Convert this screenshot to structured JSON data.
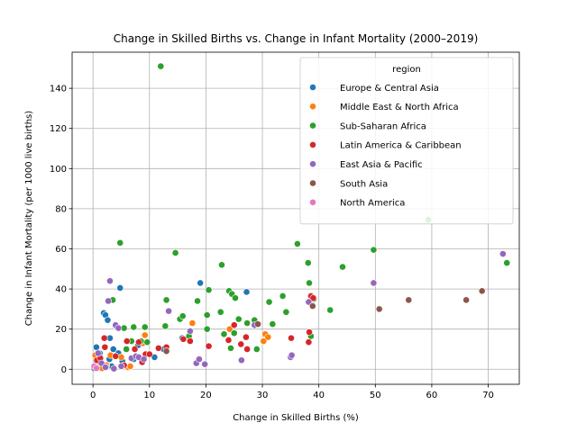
{
  "chart_data": {
    "type": "scatter",
    "title": "Change in Skilled Births vs. Change in Infant Mortality (2000–2019)",
    "xlabel": "Change in Skilled Births (%)",
    "ylabel": "Change in Infant Mortality (per 1000 live births)",
    "xlim": [
      -3.7,
      75.5
    ],
    "ylim": [
      -7.5,
      158
    ],
    "xticks": [
      0,
      10,
      20,
      30,
      40,
      50,
      60,
      70
    ],
    "yticks": [
      0,
      20,
      40,
      60,
      80,
      100,
      120,
      140
    ],
    "grid": true,
    "legend": {
      "title": "region",
      "position": "top-right"
    },
    "series": [
      {
        "name": "Europe & Central Asia",
        "color": "#1f77b4",
        "points": [
          [
            0.2,
            0.5
          ],
          [
            0.5,
            2.5
          ],
          [
            0.6,
            11
          ],
          [
            0.8,
            5
          ],
          [
            1.2,
            8
          ],
          [
            1.5,
            3
          ],
          [
            1.7,
            0.8
          ],
          [
            1.9,
            28
          ],
          [
            2.2,
            27
          ],
          [
            2.6,
            24.5
          ],
          [
            2.9,
            5
          ],
          [
            3.0,
            15.5
          ],
          [
            3.3,
            1.5
          ],
          [
            3.6,
            10
          ],
          [
            4.0,
            21.5
          ],
          [
            4.5,
            8
          ],
          [
            4.8,
            40.5
          ],
          [
            5.2,
            4
          ],
          [
            6.0,
            10
          ],
          [
            7.2,
            5
          ],
          [
            8.0,
            12
          ],
          [
            10.9,
            6
          ],
          [
            12.5,
            10
          ],
          [
            15.8,
            15.5
          ],
          [
            19.0,
            43
          ],
          [
            27.2,
            38.5
          ]
        ]
      },
      {
        "name": "Middle East & North Africa",
        "color": "#ff7f0e",
        "points": [
          [
            0.4,
            7
          ],
          [
            1.0,
            3
          ],
          [
            1.6,
            0.5
          ],
          [
            2.4,
            2
          ],
          [
            3.1,
            7
          ],
          [
            5.0,
            6
          ],
          [
            6.2,
            1
          ],
          [
            6.6,
            1.5
          ],
          [
            8.8,
            13
          ],
          [
            9.2,
            17
          ],
          [
            17.6,
            23
          ],
          [
            24.2,
            20
          ],
          [
            30.2,
            14
          ],
          [
            30.5,
            17.5
          ],
          [
            31.0,
            16
          ]
        ]
      },
      {
        "name": "Sub-Saharan Africa",
        "color": "#2ca02c",
        "points": [
          [
            3.5,
            34.5
          ],
          [
            4.8,
            63
          ],
          [
            5.5,
            20.5
          ],
          [
            5.9,
            10
          ],
          [
            6.8,
            14
          ],
          [
            7.2,
            21
          ],
          [
            8.5,
            14
          ],
          [
            9.2,
            21
          ],
          [
            9.6,
            13.5
          ],
          [
            12.0,
            151
          ],
          [
            12.8,
            21.5
          ],
          [
            13.0,
            34.5
          ],
          [
            14.6,
            58
          ],
          [
            15.4,
            25
          ],
          [
            15.9,
            26.5
          ],
          [
            17.0,
            16.5
          ],
          [
            18.5,
            34
          ],
          [
            20.2,
            27
          ],
          [
            20.5,
            39.5
          ],
          [
            20.2,
            20
          ],
          [
            22.8,
            52
          ],
          [
            22.6,
            28.5
          ],
          [
            23.2,
            17.5
          ],
          [
            24.1,
            39
          ],
          [
            24.4,
            10.5
          ],
          [
            24.6,
            37.5
          ],
          [
            25.0,
            18
          ],
          [
            25.2,
            35.5
          ],
          [
            25.8,
            25
          ],
          [
            27.3,
            23
          ],
          [
            28.6,
            24.5
          ],
          [
            29.0,
            10
          ],
          [
            31.2,
            33.5
          ],
          [
            31.8,
            22.5
          ],
          [
            33.6,
            36.5
          ],
          [
            34.2,
            28.5
          ],
          [
            36.2,
            62.5
          ],
          [
            38.1,
            53
          ],
          [
            38.3,
            43
          ],
          [
            38.6,
            16.5
          ],
          [
            39.1,
            35
          ],
          [
            42.0,
            29.5
          ],
          [
            44.2,
            51
          ],
          [
            49.7,
            59.5
          ],
          [
            59.4,
            74.5
          ],
          [
            73.3,
            53
          ]
        ]
      },
      {
        "name": "Latin America & Caribbean",
        "color": "#d62728",
        "points": [
          [
            0.3,
            1.5
          ],
          [
            0.7,
            4.5
          ],
          [
            1.3,
            5.5
          ],
          [
            2.0,
            15.5
          ],
          [
            2.1,
            11
          ],
          [
            2.3,
            1
          ],
          [
            4.0,
            6.5
          ],
          [
            5.5,
            2
          ],
          [
            6.0,
            14
          ],
          [
            7.4,
            10
          ],
          [
            8.1,
            13.5
          ],
          [
            8.7,
            3.5
          ],
          [
            9.3,
            7.5
          ],
          [
            10.0,
            7.5
          ],
          [
            11.6,
            10.5
          ],
          [
            13.0,
            11
          ],
          [
            16.0,
            15
          ],
          [
            17.2,
            14
          ],
          [
            20.5,
            11.5
          ],
          [
            24.0,
            14.5
          ],
          [
            25.0,
            22
          ],
          [
            26.2,
            12.5
          ],
          [
            27.1,
            16
          ],
          [
            27.3,
            10
          ],
          [
            35.1,
            15.5
          ],
          [
            38.2,
            13.5
          ],
          [
            38.3,
            18.5
          ],
          [
            38.6,
            36.5
          ],
          [
            39.0,
            35.5
          ]
        ]
      },
      {
        "name": "East Asia & Pacific",
        "color": "#9467bd",
        "points": [
          [
            0.9,
            8
          ],
          [
            1.5,
            3
          ],
          [
            2.2,
            1
          ],
          [
            2.7,
            34
          ],
          [
            3.0,
            44
          ],
          [
            3.7,
            0.3
          ],
          [
            4.0,
            22
          ],
          [
            4.5,
            20.5
          ],
          [
            5.0,
            1.5
          ],
          [
            6.8,
            5.5
          ],
          [
            7.6,
            6.5
          ],
          [
            8.1,
            6
          ],
          [
            9.0,
            5
          ],
          [
            13.4,
            29
          ],
          [
            17.2,
            19
          ],
          [
            18.3,
            3
          ],
          [
            18.8,
            5
          ],
          [
            19.8,
            2.5
          ],
          [
            26.3,
            4.5
          ],
          [
            28.6,
            22
          ],
          [
            35.0,
            6
          ],
          [
            35.2,
            7
          ],
          [
            38.2,
            33.5
          ],
          [
            49.7,
            43
          ],
          [
            72.6,
            57.5
          ]
        ]
      },
      {
        "name": "South Asia",
        "color": "#8c564b",
        "points": [
          [
            13.0,
            9
          ],
          [
            29.2,
            22.5
          ],
          [
            38.9,
            31.5
          ],
          [
            50.7,
            30
          ],
          [
            55.9,
            34.5
          ],
          [
            66.1,
            34.5
          ],
          [
            68.9,
            39
          ]
        ]
      },
      {
        "name": "North America",
        "color": "#e377c2",
        "points": [
          [
            0.2,
            1.5
          ],
          [
            0.6,
            0.5
          ]
        ]
      }
    ]
  }
}
